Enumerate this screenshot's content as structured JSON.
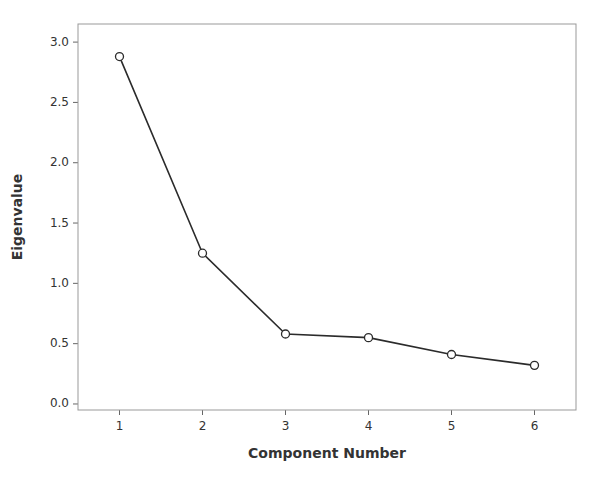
{
  "chart_data": {
    "type": "line",
    "x": [
      1,
      2,
      3,
      4,
      5,
      6
    ],
    "values": [
      2.88,
      1.25,
      0.58,
      0.55,
      0.41,
      0.32
    ],
    "xlabel": "Component Number",
    "ylabel": "Eigenvalue",
    "xlim": [
      0.5,
      6.5
    ],
    "ylim": [
      -0.05,
      3.15
    ],
    "xticks": [
      1,
      2,
      3,
      4,
      5,
      6
    ],
    "yticks": [
      {
        "value": 0.0,
        "label": "0.0"
      },
      0.5,
      {
        "value": 1.0,
        "label": "1.0"
      },
      1.5,
      {
        "value": 2.0,
        "label": "2.0"
      },
      2.5,
      {
        "value": 3.0,
        "label": "3.0"
      }
    ],
    "color": "#2b2b2b",
    "marker": "circle",
    "grid": false
  }
}
